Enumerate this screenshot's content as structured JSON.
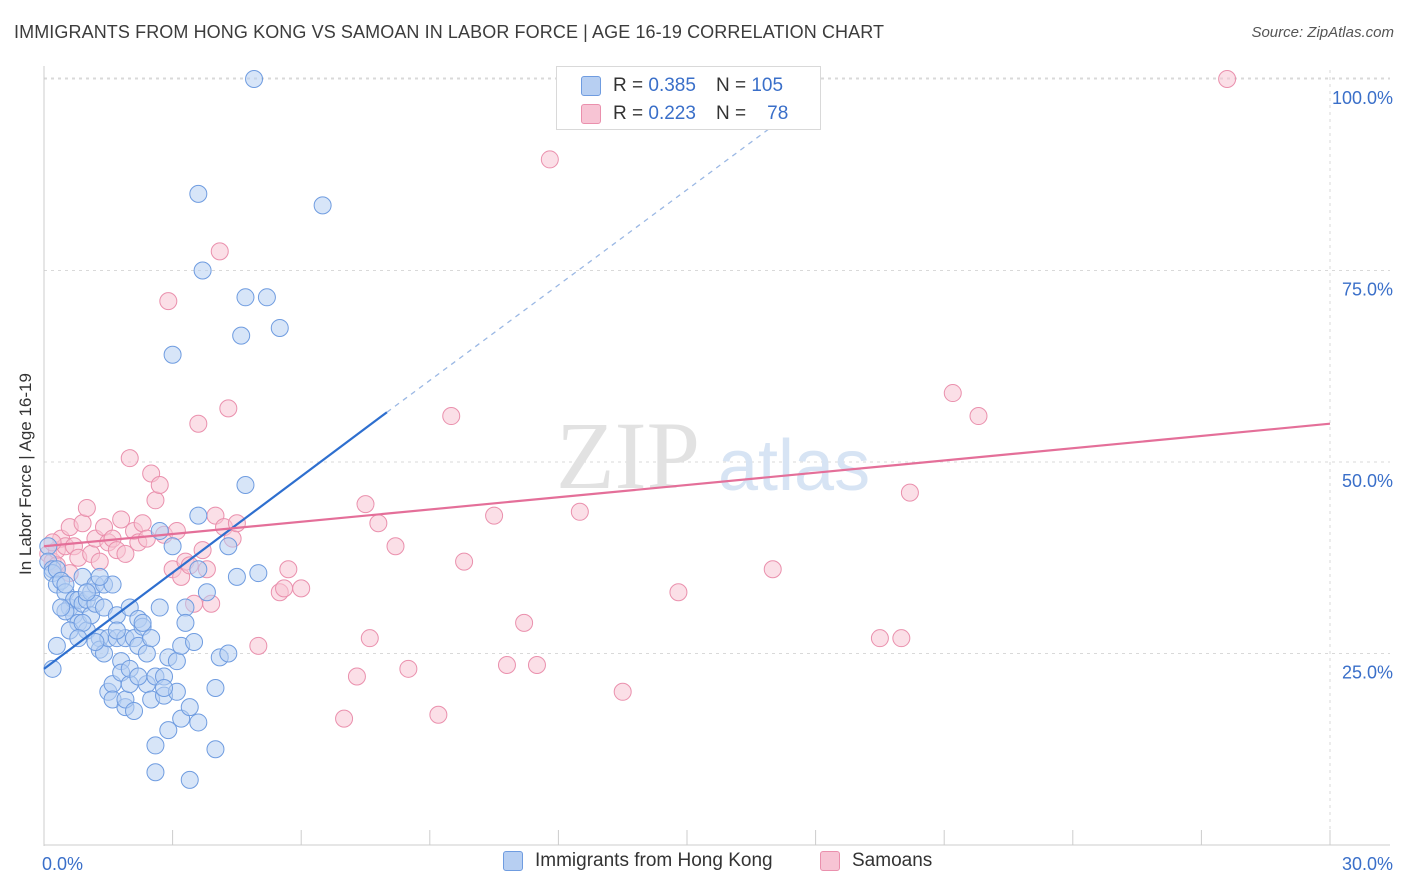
{
  "title": "IMMIGRANTS FROM HONG KONG VS SAMOAN IN LABOR FORCE | AGE 16-19 CORRELATION CHART",
  "source": "Source: ZipAtlas.com",
  "watermark": {
    "zip": "ZIP",
    "atlas": "atlas"
  },
  "colors": {
    "blue_fill": "#b7cff2",
    "blue_stroke": "#6f9ce0",
    "blue_line": "#2e6fcf",
    "pink_fill": "#f7c4d4",
    "pink_stroke": "#ea90ad",
    "pink_line": "#e46f99",
    "axis_text_blue": "#3a6fc9",
    "grid": "#d9d9d9"
  },
  "stats": {
    "r_label": "R =",
    "n_label": "N =",
    "series": [
      {
        "name": "Immigrants from Hong Kong",
        "r": "0.385",
        "n": "105"
      },
      {
        "name": "Samoans",
        "r": "0.223",
        "n": "78"
      }
    ]
  },
  "chart_data": {
    "type": "scatter",
    "title": "IMMIGRANTS FROM HONG KONG VS SAMOAN IN LABOR FORCE | AGE 16-19 CORRELATION CHART",
    "xlabel": "",
    "ylabel": "In Labor Force | Age 16-19",
    "xlim": [
      0,
      30
    ],
    "ylim": [
      0,
      103
    ],
    "x_tick_labels": [
      "0.0%",
      "30.0%"
    ],
    "y_tick_labels": [
      "25.0%",
      "50.0%",
      "75.0%",
      "100.0%"
    ],
    "y_ticks": [
      25,
      50,
      75,
      100
    ],
    "legend_position": "bottom",
    "series": [
      {
        "name": "Immigrants from Hong Kong",
        "color": "blue",
        "trend": {
          "x": [
            0,
            8
          ],
          "y": [
            23,
            56.5
          ],
          "dashed_extension_to": [
            18,
            98
          ]
        },
        "points": [
          [
            0.1,
            39
          ],
          [
            0.1,
            37
          ],
          [
            0.2,
            36
          ],
          [
            0.2,
            35.5
          ],
          [
            0.3,
            36
          ],
          [
            0.3,
            34
          ],
          [
            0.4,
            34.5
          ],
          [
            0.5,
            33
          ],
          [
            0.5,
            34
          ],
          [
            0.6,
            31
          ],
          [
            0.7,
            32
          ],
          [
            0.7,
            30
          ],
          [
            0.8,
            29
          ],
          [
            0.8,
            32
          ],
          [
            0.9,
            31.5
          ],
          [
            0.9,
            35
          ],
          [
            1.0,
            28
          ],
          [
            1.0,
            32
          ],
          [
            1.1,
            30
          ],
          [
            1.1,
            33
          ],
          [
            1.2,
            31.5
          ],
          [
            1.2,
            34
          ],
          [
            1.3,
            27
          ],
          [
            1.3,
            25.5
          ],
          [
            1.4,
            31
          ],
          [
            1.4,
            34
          ],
          [
            1.4,
            25
          ],
          [
            1.5,
            27
          ],
          [
            1.5,
            20
          ],
          [
            1.6,
            34
          ],
          [
            1.6,
            21
          ],
          [
            1.6,
            19
          ],
          [
            1.7,
            27
          ],
          [
            1.7,
            30
          ],
          [
            1.8,
            24
          ],
          [
            1.8,
            22.5
          ],
          [
            1.9,
            27
          ],
          [
            1.9,
            18
          ],
          [
            1.9,
            19
          ],
          [
            2.0,
            31
          ],
          [
            2.0,
            21
          ],
          [
            2.1,
            27
          ],
          [
            2.1,
            17.5
          ],
          [
            2.2,
            29.5
          ],
          [
            2.2,
            26
          ],
          [
            2.3,
            28.5
          ],
          [
            2.3,
            29
          ],
          [
            2.4,
            25
          ],
          [
            2.4,
            21
          ],
          [
            2.5,
            27
          ],
          [
            2.5,
            19
          ],
          [
            2.6,
            22
          ],
          [
            2.6,
            13
          ],
          [
            2.6,
            9.5
          ],
          [
            2.7,
            41
          ],
          [
            2.7,
            31
          ],
          [
            2.8,
            19.5
          ],
          [
            2.8,
            22
          ],
          [
            2.9,
            24.5
          ],
          [
            2.9,
            15
          ],
          [
            3.0,
            64
          ],
          [
            3.0,
            39
          ],
          [
            3.1,
            24
          ],
          [
            3.1,
            20
          ],
          [
            3.2,
            26
          ],
          [
            3.2,
            16.5
          ],
          [
            3.3,
            31
          ],
          [
            3.3,
            29
          ],
          [
            3.4,
            8.5
          ],
          [
            3.5,
            26.5
          ],
          [
            3.6,
            16
          ],
          [
            3.6,
            36
          ],
          [
            3.6,
            43
          ],
          [
            3.6,
            85
          ],
          [
            3.7,
            75
          ],
          [
            4.0,
            20.5
          ],
          [
            4.0,
            12.5
          ],
          [
            4.1,
            24.5
          ],
          [
            4.3,
            25
          ],
          [
            4.3,
            39
          ],
          [
            4.5,
            35
          ],
          [
            4.6,
            66.5
          ],
          [
            4.7,
            71.5
          ],
          [
            4.7,
            47
          ],
          [
            4.9,
            100
          ],
          [
            5.0,
            35.5
          ],
          [
            5.2,
            71.5
          ],
          [
            5.5,
            67.5
          ],
          [
            6.5,
            83.5
          ],
          [
            0.2,
            23
          ],
          [
            0.3,
            26
          ],
          [
            0.5,
            30.5
          ],
          [
            0.6,
            28
          ],
          [
            0.9,
            29
          ],
          [
            1.2,
            26.5
          ],
          [
            1.7,
            28
          ],
          [
            2.0,
            23
          ],
          [
            2.2,
            22
          ],
          [
            2.8,
            20.5
          ],
          [
            3.4,
            18
          ],
          [
            1.0,
            33
          ],
          [
            1.3,
            35
          ],
          [
            0.4,
            31
          ],
          [
            0.8,
            27
          ],
          [
            3.8,
            33
          ]
        ]
      },
      {
        "name": "Samoans",
        "color": "pink",
        "trend": {
          "x": [
            0,
            30
          ],
          "y": [
            39,
            55
          ]
        },
        "points": [
          [
            0.1,
            38
          ],
          [
            0.2,
            37
          ],
          [
            0.3,
            38.5
          ],
          [
            0.4,
            40
          ],
          [
            0.5,
            39
          ],
          [
            0.6,
            41.5
          ],
          [
            0.7,
            39
          ],
          [
            0.8,
            37.5
          ],
          [
            0.9,
            42
          ],
          [
            1.0,
            44
          ],
          [
            1.1,
            38
          ],
          [
            1.2,
            40
          ],
          [
            1.3,
            37
          ],
          [
            1.4,
            41.5
          ],
          [
            1.5,
            39.5
          ],
          [
            1.6,
            40
          ],
          [
            1.7,
            38.5
          ],
          [
            1.8,
            42.5
          ],
          [
            1.9,
            38
          ],
          [
            2.0,
            50.5
          ],
          [
            2.1,
            41
          ],
          [
            2.2,
            39.5
          ],
          [
            2.3,
            42
          ],
          [
            2.4,
            40
          ],
          [
            2.5,
            48.5
          ],
          [
            2.6,
            45
          ],
          [
            2.7,
            47
          ],
          [
            2.8,
            40.5
          ],
          [
            2.9,
            71
          ],
          [
            3.0,
            36
          ],
          [
            3.1,
            41
          ],
          [
            3.2,
            35
          ],
          [
            3.3,
            37
          ],
          [
            3.4,
            36.5
          ],
          [
            3.5,
            31.5
          ],
          [
            3.6,
            55
          ],
          [
            3.7,
            38.5
          ],
          [
            3.8,
            36
          ],
          [
            3.9,
            31.5
          ],
          [
            4.0,
            43
          ],
          [
            4.1,
            77.5
          ],
          [
            4.2,
            41.5
          ],
          [
            4.3,
            57
          ],
          [
            4.4,
            40
          ],
          [
            4.5,
            42
          ],
          [
            5.0,
            26
          ],
          [
            5.5,
            33
          ],
          [
            5.6,
            33.5
          ],
          [
            5.7,
            36
          ],
          [
            6.0,
            33.5
          ],
          [
            7.0,
            16.5
          ],
          [
            7.3,
            22
          ],
          [
            7.5,
            44.5
          ],
          [
            7.6,
            27
          ],
          [
            7.8,
            42
          ],
          [
            8.2,
            39
          ],
          [
            8.5,
            23
          ],
          [
            9.2,
            17
          ],
          [
            9.5,
            56
          ],
          [
            9.8,
            37
          ],
          [
            10.5,
            43
          ],
          [
            10.8,
            23.5
          ],
          [
            11.2,
            29
          ],
          [
            11.5,
            23.5
          ],
          [
            11.8,
            89.5
          ],
          [
            12.5,
            43.5
          ],
          [
            13.5,
            20
          ],
          [
            14.8,
            33
          ],
          [
            17.0,
            36
          ],
          [
            19.5,
            27
          ],
          [
            20.0,
            27
          ],
          [
            20.2,
            46
          ],
          [
            21.2,
            59
          ],
          [
            21.8,
            56
          ],
          [
            27.6,
            100
          ],
          [
            0.3,
            36.5
          ],
          [
            0.6,
            35.5
          ],
          [
            0.2,
            39.5
          ]
        ]
      }
    ]
  },
  "x_axis_labels": {
    "left": "0.0%",
    "right": "30.0%"
  }
}
